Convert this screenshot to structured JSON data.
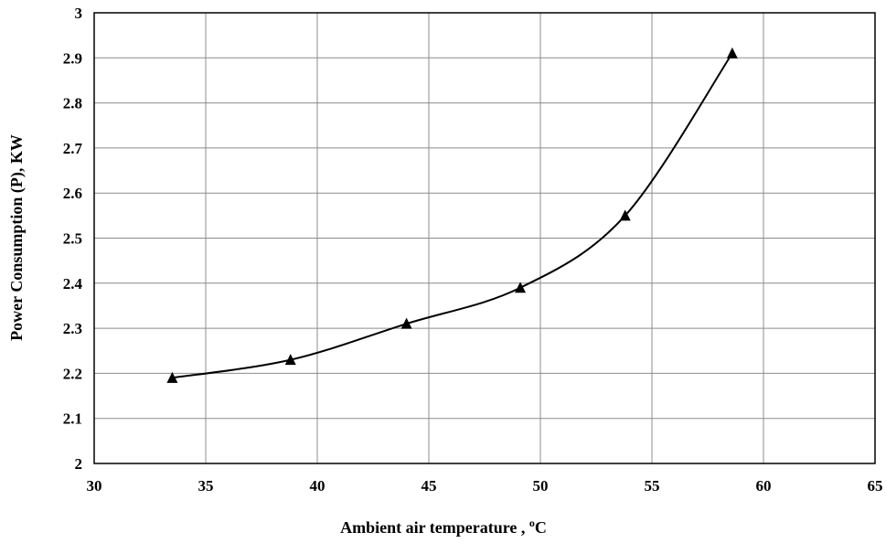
{
  "chart_data": {
    "type": "line",
    "title": "",
    "xlabel": "Ambient air temperature , ",
    "xlabel_superscript": "o",
    "xlabel_unit": "C",
    "ylabel": "Power Consumption  (P), KW",
    "xlim": [
      30,
      65
    ],
    "ylim": [
      2,
      3
    ],
    "xticks": [
      "30",
      "35",
      "40",
      "45",
      "50",
      "55",
      "60",
      "65"
    ],
    "yticks": [
      "2",
      "2.1",
      "2.2",
      "2.3",
      "2.4",
      "2.5",
      "2.6",
      "2.7",
      "2.8",
      "2.9",
      "3"
    ],
    "grid": true,
    "legend": "none",
    "series": [
      {
        "marker": "triangle",
        "smooth": true,
        "color": "#000000",
        "x": [
          33.5,
          38.8,
          44.0,
          49.1,
          53.8,
          58.6
        ],
        "y": [
          2.19,
          2.23,
          2.31,
          2.39,
          2.55,
          2.91
        ]
      }
    ]
  }
}
